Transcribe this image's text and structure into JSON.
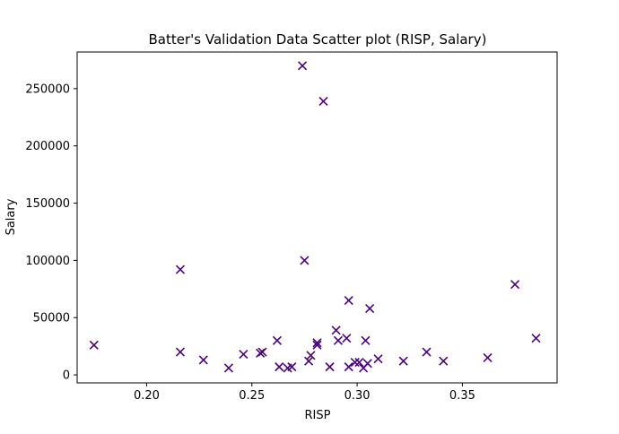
{
  "chart_data": {
    "type": "scatter",
    "title": "Batter's Validation Data Scatter plot (RISP, Salary)",
    "xlabel": "RISP",
    "ylabel": "Salary",
    "xlim": [
      0.167,
      0.395
    ],
    "ylim": [
      -7000,
      282000
    ],
    "x_ticks": [
      0.2,
      0.25,
      0.3,
      0.35
    ],
    "x_tick_labels": [
      "0.20",
      "0.25",
      "0.30",
      "0.35"
    ],
    "y_ticks": [
      0,
      50000,
      100000,
      150000,
      200000,
      250000
    ],
    "y_tick_labels": [
      "0",
      "50000",
      "100000",
      "150000",
      "200000",
      "250000"
    ],
    "grid": false,
    "marker": "x",
    "color": "#4b0082",
    "points": [
      {
        "x": 0.175,
        "y": 26000
      },
      {
        "x": 0.216,
        "y": 92000
      },
      {
        "x": 0.216,
        "y": 20000
      },
      {
        "x": 0.227,
        "y": 13000
      },
      {
        "x": 0.239,
        "y": 6000
      },
      {
        "x": 0.246,
        "y": 18000
      },
      {
        "x": 0.254,
        "y": 19000
      },
      {
        "x": 0.255,
        "y": 20000
      },
      {
        "x": 0.262,
        "y": 30000
      },
      {
        "x": 0.263,
        "y": 7000
      },
      {
        "x": 0.267,
        "y": 6000
      },
      {
        "x": 0.269,
        "y": 7000
      },
      {
        "x": 0.274,
        "y": 270000
      },
      {
        "x": 0.275,
        "y": 100000
      },
      {
        "x": 0.277,
        "y": 12000
      },
      {
        "x": 0.278,
        "y": 17000
      },
      {
        "x": 0.281,
        "y": 28000
      },
      {
        "x": 0.281,
        "y": 26000
      },
      {
        "x": 0.284,
        "y": 239000
      },
      {
        "x": 0.287,
        "y": 7000
      },
      {
        "x": 0.29,
        "y": 39000
      },
      {
        "x": 0.291,
        "y": 30000
      },
      {
        "x": 0.295,
        "y": 32000
      },
      {
        "x": 0.296,
        "y": 65000
      },
      {
        "x": 0.296,
        "y": 7000
      },
      {
        "x": 0.299,
        "y": 11000
      },
      {
        "x": 0.301,
        "y": 11000
      },
      {
        "x": 0.303,
        "y": 6000
      },
      {
        "x": 0.304,
        "y": 30000
      },
      {
        "x": 0.305,
        "y": 10000
      },
      {
        "x": 0.306,
        "y": 58000
      },
      {
        "x": 0.31,
        "y": 14000
      },
      {
        "x": 0.322,
        "y": 12000
      },
      {
        "x": 0.333,
        "y": 20000
      },
      {
        "x": 0.341,
        "y": 12000
      },
      {
        "x": 0.362,
        "y": 15000
      },
      {
        "x": 0.375,
        "y": 79000
      },
      {
        "x": 0.385,
        "y": 32000
      }
    ]
  }
}
